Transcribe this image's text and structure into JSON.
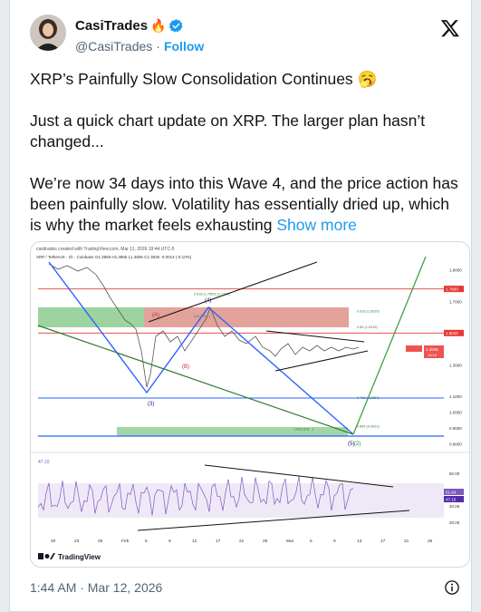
{
  "author": {
    "name": "CasiTrades",
    "name_emoji": "🔥",
    "handle": "@CasiTrades",
    "separator": "·",
    "follow_label": "Follow"
  },
  "tweet": {
    "title": "XRP’s Painfully Slow Consolidation Continues 🥱",
    "para1": "Just a quick chart update on XRP. The larger plan hasn’t changed...",
    "para2": "We’re now 34 days into this Wave 4, and the price action has been painfully slow. Volatility has essentially dried up, which is why the market feels exhausting",
    "show_more": "Show more"
  },
  "chart": {
    "header": "casitrades created with TradingView.com, Mar 11, 2026 19:44 UTC-5",
    "symbol_line": "XRP / TetherUS · 1h · Coinbase  O1.3859  H1.3865  L1.3806  C1.3835  -0.0014 (-0.10%)",
    "price_levels": [
      {
        "label": "1.9000",
        "value": 1.9
      },
      {
        "label": "1.7000",
        "value": 1.7
      },
      {
        "label": "1.5000",
        "value": 1.5
      },
      {
        "label": "1.3000",
        "value": 1.3
      },
      {
        "label": "1.1000",
        "value": 1.1
      },
      {
        "label": "1.0000",
        "value": 1.0
      },
      {
        "label": "0.9000",
        "value": 0.9
      },
      {
        "label": "0.8000",
        "value": 0.8
      }
    ],
    "red_lines": [
      {
        "label": "1.7800",
        "value": 1.78
      },
      {
        "label": "1.5010",
        "value": 1.501
      }
    ],
    "current_price": "1.3835",
    "current_price_sub": "15:16",
    "fib_labels": [
      {
        "text": "0.618 (1.7650) (1.7712)",
        "value": 1.74
      },
      {
        "text": "0.5 (1.6…)",
        "value": 1.6
      },
      {
        "text": "0.618 (1.6320)",
        "value": 1.632
      },
      {
        "text": "0.65 (1.5319)",
        "value": 1.532
      },
      {
        "text": "0.786 (1.0854)",
        "value": 1.085
      },
      {
        "text": "0.854 (0.9021)",
        "value": 0.902
      },
      {
        "text": "1.618 (0.8…)",
        "value": 0.885
      }
    ],
    "wave_labels": [
      "(A)",
      "(B)",
      "(3)",
      "(4)",
      "(5)",
      "(2)"
    ],
    "time_labels": [
      "20",
      "23",
      "26",
      "Feb",
      "5",
      "9",
      "12",
      "17",
      "21",
      "25",
      "Mar",
      "5",
      "9",
      "13",
      "17",
      "21",
      "25"
    ],
    "rsi_label": "47.10",
    "rsi_levels": [
      {
        "label": "80.00",
        "value": 80
      },
      {
        "label": "60.00",
        "value": 60
      },
      {
        "label": "40.00",
        "value": 40
      },
      {
        "label": "20.00",
        "value": 20
      }
    ],
    "rsi_current": [
      "51.64",
      "47.10"
    ],
    "brand": "TradingView"
  },
  "footer": {
    "timestamp": "1:44 AM · Mar 12, 2026"
  },
  "colors": {
    "accent": "#1d9bf0",
    "green_zone": "#4caf50",
    "red_zone": "#ef5350",
    "wave_line": "#2962ff",
    "rsi_line": "#7e57c2"
  }
}
